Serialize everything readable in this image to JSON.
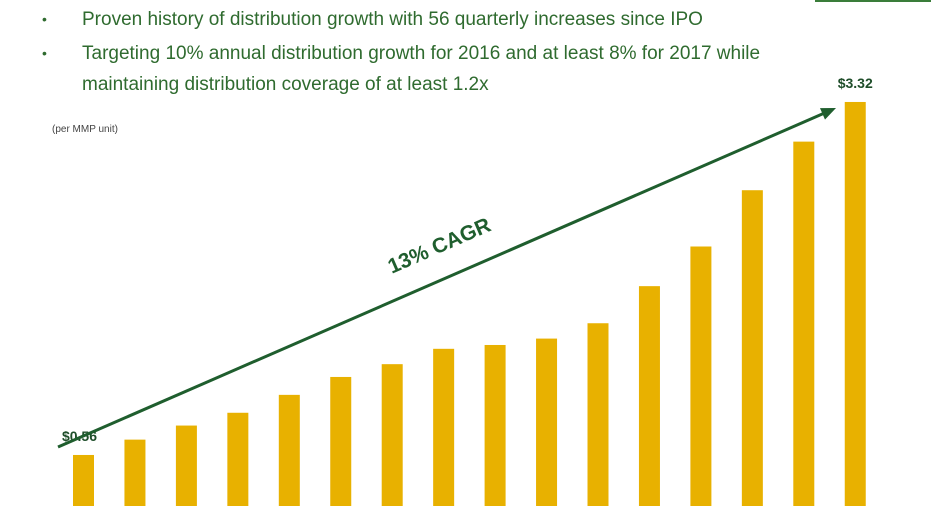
{
  "chart_data": {
    "type": "bar",
    "bullets": [
      "Proven history of distribution growth with 56 quarterly increases since IPO",
      "Targeting 10% annual distribution growth for 2016 and at least 8% for 2017 while maintaining distribution coverage of at least 1.2x"
    ],
    "subtitle": "(per MMP unit)",
    "annotation": "13% CAGR",
    "values": [
      0.56,
      0.68,
      0.79,
      0.89,
      1.03,
      1.17,
      1.27,
      1.39,
      1.42,
      1.47,
      1.59,
      1.88,
      2.19,
      2.63,
      3.01,
      3.32
    ],
    "value_labels": [
      "$0.56",
      null,
      null,
      null,
      null,
      null,
      null,
      null,
      null,
      null,
      null,
      null,
      null,
      null,
      null,
      "$3.32"
    ],
    "color": "#e8b100",
    "arrow_color": "#1f5e2e"
  }
}
